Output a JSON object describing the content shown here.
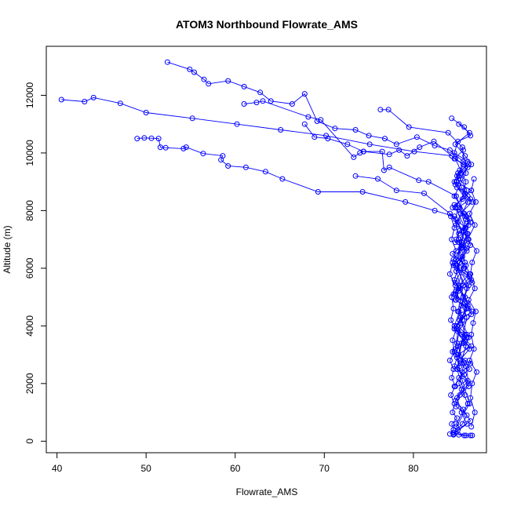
{
  "chart_data": {
    "type": "scatter",
    "title": "ATOM3 Northbound Flowrate_AMS",
    "xlabel": "Flowrate_AMS",
    "ylabel": "Altitude (m)",
    "xlim": [
      38.8,
      88.2
    ],
    "ylim": [
      -400,
      13700
    ],
    "xticks": [
      40,
      50,
      60,
      70,
      80
    ],
    "yticks": [
      0,
      2000,
      4000,
      6000,
      8000,
      10000,
      12000
    ],
    "grid": false,
    "legend": "none",
    "color": "#0000ff",
    "marker": "open-circle",
    "connected": true,
    "series": [
      {
        "x": [
          52.4,
          54.9,
          55.4,
          56.5,
          57.0,
          59.2,
          61.0,
          62.8,
          64.0,
          66.4,
          67.8,
          69.2,
          71.2,
          73.5,
          75.0,
          76.8,
          78.1,
          80.4,
          82.4,
          84.1,
          85.6,
          85.2,
          84.7,
          86.1,
          85.0,
          85.9,
          84.8,
          85.6
        ],
        "y": [
          13150,
          12900,
          12800,
          12550,
          12400,
          12500,
          12300,
          12100,
          11800,
          11700,
          12050,
          11100,
          10850,
          10800,
          10600,
          10500,
          10300,
          10550,
          10250,
          10100,
          9700,
          9400,
          8900,
          8300,
          7600,
          6800,
          5900,
          5000
        ]
      },
      {
        "x": [
          40.5,
          43.1,
          44.1,
          47.1,
          50.0,
          55.2,
          60.2,
          65.1,
          70.2,
          75.1,
          80.1,
          84.3,
          85.6,
          85.1,
          86.0,
          84.7,
          85.8,
          85.3,
          84.9,
          86.2,
          85.4,
          84.6,
          85.9,
          85.2
        ],
        "y": [
          11850,
          11780,
          11920,
          11720,
          11400,
          11200,
          11000,
          10800,
          10600,
          10300,
          10050,
          9900,
          9600,
          9200,
          8700,
          8100,
          7400,
          6700,
          6100,
          5400,
          4700,
          4000,
          3300,
          2600
        ]
      },
      {
        "x": [
          49.0,
          49.8,
          50.6,
          51.4,
          51.6,
          52.2,
          54.2,
          54.5,
          56.4,
          58.6,
          58.4,
          59.2,
          61.2,
          63.4,
          65.3,
          69.3,
          74.3,
          79.1,
          82.4,
          84.6,
          85.1,
          85.8,
          84.7,
          86.0,
          85.3,
          84.9,
          85.7,
          85.1,
          86.1,
          84.8
        ],
        "y": [
          10500,
          10520,
          10510,
          10500,
          10200,
          10180,
          10150,
          10200,
          9980,
          9900,
          9760,
          9550,
          9500,
          9350,
          9100,
          8650,
          8650,
          8300,
          8000,
          7800,
          7000,
          6200,
          5500,
          4800,
          4100,
          3400,
          2700,
          2000,
          1300,
          600
        ]
      },
      {
        "x": [
          76.3,
          77.2,
          79.5,
          83.9,
          85.5,
          85.9,
          84.6,
          86.3,
          85.1,
          85.6,
          84.8,
          86.0,
          85.4,
          84.9,
          85.8
        ],
        "y": [
          11500,
          11500,
          10900,
          10700,
          10200,
          9300,
          8500,
          7700,
          6900,
          6000,
          5200,
          4300,
          3400,
          2500,
          1600
        ]
      },
      {
        "x": [
          61.0,
          62.4,
          63.1,
          68.2,
          69.6,
          73.3,
          74.0,
          74.4,
          77.3,
          78.4,
          79.3,
          80.7,
          82.3,
          84.7,
          85.9,
          85.2,
          86.1,
          84.8,
          85.6,
          85.0,
          86.2,
          85.3
        ],
        "y": [
          11700,
          11750,
          11800,
          11250,
          11150,
          9850,
          10000,
          10050,
          9950,
          10100,
          9900,
          10200,
          10400,
          9800,
          9000,
          8100,
          7200,
          6300,
          5400,
          4500,
          3600,
          2700
        ]
      },
      {
        "x": [
          67.8,
          68.9,
          70.4,
          72.6,
          74.4,
          76.5,
          76.7,
          77.3,
          80.6,
          81.7,
          84.8,
          85.9,
          85.4,
          84.7,
          86.0,
          85.1,
          85.8,
          84.9,
          85.5,
          86.3,
          84.8
        ],
        "y": [
          11000,
          10550,
          10500,
          10300,
          10050,
          10050,
          9400,
          9500,
          9050,
          9000,
          8500,
          7700,
          6900,
          6100,
          5300,
          4500,
          3700,
          2900,
          2100,
          1300,
          500
        ]
      },
      {
        "x": [
          73.5,
          76.0,
          78.1,
          81.2,
          84.1,
          85.6,
          86.4,
          85.2,
          84.6,
          85.8,
          86.5,
          85.0,
          84.7,
          85.9,
          86.2,
          84.9,
          85.4,
          86.0,
          84.5,
          85.7,
          86.6,
          85.1
        ],
        "y": [
          9200,
          9100,
          8700,
          8600,
          7900,
          7300,
          6800,
          6200,
          5600,
          5000,
          4400,
          3800,
          3200,
          2600,
          2000,
          1500,
          1000,
          600,
          250,
          200,
          200,
          220
        ]
      },
      {
        "x": [
          84.3,
          85.7,
          86.4,
          85.0,
          84.6,
          86.1,
          85.3,
          84.8,
          86.5,
          85.5,
          84.4,
          85.9,
          86.2,
          85.1,
          84.7,
          86.0,
          85.4,
          84.9,
          86.3,
          85.6,
          84.5,
          85.8,
          86.6,
          85.2,
          84.6,
          86.0,
          85.0,
          84.8,
          86.4,
          85.5
        ],
        "y": [
          11200,
          10900,
          10600,
          10400,
          10000,
          9700,
          9300,
          9000,
          8700,
          8400,
          8100,
          7800,
          7500,
          7200,
          6900,
          6600,
          6300,
          6000,
          5700,
          5400,
          5100,
          4800,
          4500,
          4200,
          3900,
          3600,
          3300,
          3000,
          2700,
          2400
        ]
      },
      {
        "x": [
          85.1,
          86.3,
          84.7,
          85.8,
          86.5,
          84.9,
          85.4,
          86.1,
          84.6,
          85.7,
          86.4,
          85.2,
          84.8,
          86.0,
          85.5,
          84.5,
          85.9,
          86.6,
          85.0,
          84.7,
          86.2,
          85.3,
          84.9,
          86.0,
          85.6,
          84.4,
          85.8,
          86.3,
          85.1,
          84.6
        ],
        "y": [
          11000,
          10700,
          10300,
          9900,
          9600,
          9200,
          8800,
          8500,
          8200,
          7900,
          7600,
          7300,
          7000,
          6700,
          6400,
          6100,
          5800,
          5500,
          5200,
          4900,
          4600,
          4300,
          4000,
          3700,
          3400,
          3100,
          2800,
          2500,
          2200,
          1900
        ]
      },
      {
        "x": [
          85.6,
          84.6,
          86.1,
          85.3,
          84.9,
          86.4,
          85.0,
          84.7,
          85.9,
          86.2,
          85.4,
          84.5,
          85.7,
          86.5,
          85.1,
          84.8,
          86.0,
          85.5,
          84.6,
          85.8,
          86.3,
          85.2,
          84.9,
          86.1,
          85.4,
          84.7,
          85.6,
          86.4,
          85.0,
          84.5
        ],
        "y": [
          10100,
          9800,
          9500,
          9100,
          8800,
          8400,
          8100,
          7700,
          7400,
          7000,
          6700,
          6300,
          6000,
          5600,
          5300,
          4900,
          4600,
          4200,
          3900,
          3500,
          3200,
          2800,
          2500,
          2100,
          1800,
          1400,
          1100,
          700,
          400,
          220
        ]
      },
      {
        "x": [
          86.2,
          85.0,
          84.6,
          85.8,
          86.6,
          85.3,
          84.8,
          86.0,
          85.5,
          84.4,
          85.9,
          86.3,
          85.1,
          84.7,
          86.1,
          85.6,
          84.9,
          85.4,
          86.5,
          85.0,
          84.6,
          85.7,
          86.2,
          85.2,
          84.8,
          86.0,
          85.5,
          84.5,
          85.9,
          86.4
        ],
        "y": [
          9600,
          9300,
          9000,
          8600,
          8300,
          7900,
          7500,
          7200,
          6800,
          6500,
          6100,
          5800,
          5400,
          5100,
          4700,
          4400,
          4000,
          3700,
          3300,
          3000,
          2600,
          2300,
          1900,
          1600,
          1200,
          900,
          600,
          300,
          200,
          200
        ]
      },
      {
        "x": [
          86.8,
          86.5,
          87.0,
          86.3,
          86.9,
          86.1,
          87.1,
          86.6,
          86.4,
          86.9,
          86.2,
          87.0,
          86.7,
          86.5,
          86.8,
          86.3,
          87.1,
          86.6,
          86.4,
          86.9,
          86.5
        ],
        "y": [
          9100,
          8700,
          8300,
          7900,
          7500,
          7000,
          6600,
          6200,
          5800,
          5300,
          4900,
          4500,
          4100,
          3700,
          3200,
          2800,
          2400,
          2000,
          1500,
          1000,
          500
        ]
      },
      {
        "x": [
          84.2,
          84.6,
          84.3,
          84.8,
          84.4,
          84.1,
          84.7,
          84.3,
          84.5,
          84.2,
          84.8,
          84.4,
          84.6,
          84.1,
          84.5,
          84.3,
          84.7,
          84.2,
          84.6,
          84.4,
          84.9,
          84.3,
          84.5,
          84.1
        ],
        "y": [
          7800,
          7400,
          7000,
          6600,
          6200,
          5800,
          5400,
          5000,
          4600,
          4200,
          3900,
          3500,
          3100,
          2800,
          2500,
          2200,
          1900,
          1600,
          1300,
          1000,
          800,
          600,
          400,
          250
        ]
      }
    ]
  }
}
